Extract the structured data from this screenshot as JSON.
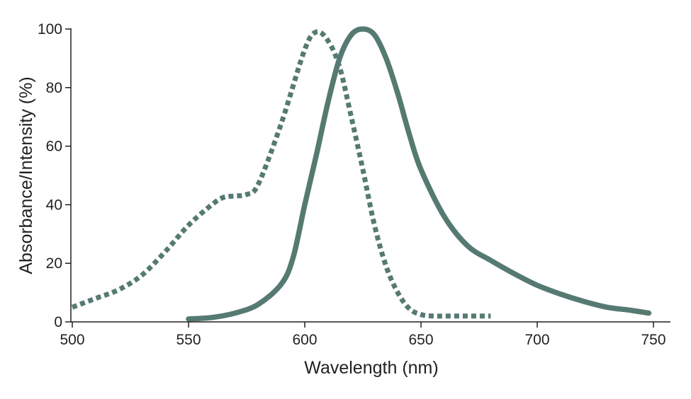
{
  "chart_data": {
    "type": "line",
    "title": "",
    "xlabel": "Wavelength (nm)",
    "ylabel": "Absorbance/Intensity (%)",
    "xlim": [
      500,
      750
    ],
    "ylim": [
      0,
      100
    ],
    "xticks": [
      "500",
      "550",
      "600",
      "650",
      "700",
      "750"
    ],
    "yticks": [
      "0",
      "20",
      "40",
      "60",
      "80",
      "100"
    ],
    "grid": false,
    "legend": "none",
    "color": "#557a72",
    "series": [
      {
        "style": "dotted",
        "x": [
          500,
          510,
          520,
          530,
          540,
          550,
          560,
          565,
          570,
          575,
          580,
          590,
          600,
          605,
          610,
          615,
          620,
          625,
          630,
          635,
          640,
          645,
          650,
          655,
          660,
          670,
          680
        ],
        "y": [
          5,
          8,
          11,
          16,
          24,
          33,
          40,
          42.5,
          43,
          43.5,
          47,
          68,
          93,
          99,
          96,
          87,
          70,
          52,
          33,
          19,
          10,
          4.5,
          2.5,
          2,
          2,
          2,
          2
        ]
      },
      {
        "style": "solid",
        "x": [
          550,
          560,
          570,
          580,
          590,
          595,
          600,
          605,
          610,
          615,
          620,
          625,
          630,
          635,
          640,
          645,
          650,
          660,
          670,
          680,
          690,
          700,
          710,
          720,
          730,
          740,
          748
        ],
        "y": [
          1,
          1.5,
          3,
          6,
          13,
          22,
          40,
          57,
          75,
          90,
          98,
          100,
          98,
          90,
          78,
          64,
          52,
          36,
          26,
          21,
          16.5,
          12.5,
          9.5,
          7,
          5,
          4,
          3
        ]
      }
    ]
  }
}
